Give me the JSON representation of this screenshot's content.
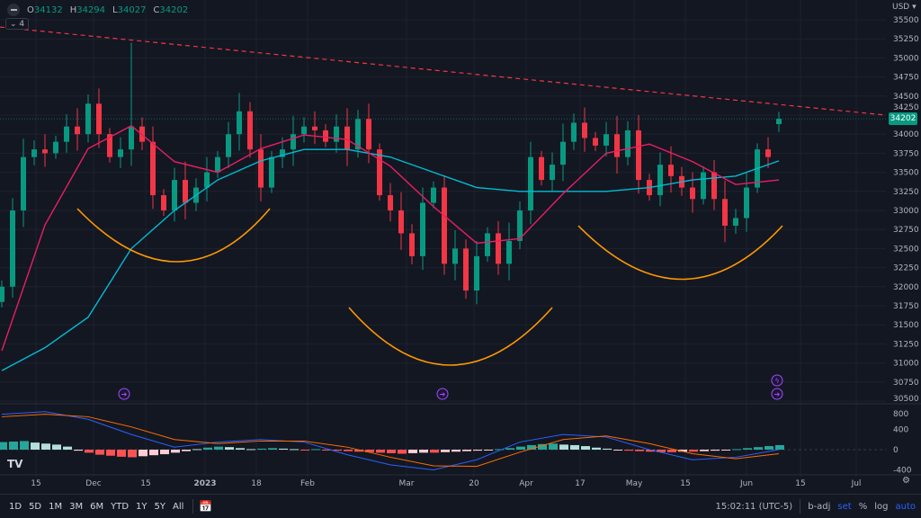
{
  "legend": {
    "o_label": "O",
    "o": "34132",
    "h_label": "H",
    "h": "34294",
    "l_label": "L",
    "l": "34027",
    "c_label": "C",
    "c": "34202",
    "collapse": "4"
  },
  "currency": "USD ▾",
  "last_price": "34202",
  "colors": {
    "up": "#089981",
    "down": "#f23645",
    "ma_fast": "#e91e63",
    "ma_slow": "#00bcd4",
    "trend": "#f23645",
    "arc": "#ff9800",
    "macd": "#2962ff",
    "signal": "#ff6d00",
    "event": "#9c4dff"
  },
  "bottom": {
    "ranges": [
      "1D",
      "5D",
      "1M",
      "3M",
      "6M",
      "YTD",
      "1Y",
      "5Y",
      "All"
    ],
    "time": "15:02:11 (UTC-5)",
    "badj": "b-adj",
    "set": "set",
    "pct": "%",
    "log": "log",
    "auto": "auto"
  },
  "chart_data": {
    "type": "candlestick",
    "price_ticks": [
      35500,
      35250,
      35000,
      34750,
      34500,
      34250,
      34000,
      33750,
      33500,
      33250,
      33000,
      32750,
      32500,
      32250,
      32000,
      31750,
      31500,
      31250,
      31000,
      30750,
      30500
    ],
    "ylim": [
      30500,
      35500
    ],
    "x_ticks": [
      "15",
      "Dec",
      "15",
      "2023",
      "18",
      "Feb",
      "Mar",
      "20",
      "Apr",
      "17",
      "May",
      "15",
      "Jun",
      "15",
      "Jul"
    ],
    "closes": [
      32000,
      33000,
      33700,
      33800,
      33750,
      33900,
      34100,
      34000,
      34400,
      34000,
      33700,
      33800,
      34100,
      33900,
      33200,
      33000,
      33400,
      33100,
      33300,
      33500,
      33700,
      34000,
      34300,
      33800,
      33300,
      33700,
      33800,
      34000,
      34100,
      34050,
      33900,
      34100,
      33800,
      34200,
      33800,
      33200,
      33000,
      32700,
      32400,
      33100,
      33300,
      32300,
      32500,
      31950,
      32400,
      32700,
      32300,
      32600,
      33000,
      33700,
      33400,
      33600,
      33900,
      34150,
      33950,
      33850,
      34000,
      33700,
      34050,
      33400,
      33200,
      33600,
      33450,
      33300,
      33150,
      33500,
      33150,
      32800,
      32900,
      33300,
      33800,
      33700,
      34202
    ],
    "last_candle": {
      "open": 34132,
      "high": 34294,
      "low": 34027,
      "close": 34202
    },
    "ma_slow": [
      30900,
      31200,
      31600,
      32500,
      33000,
      33400,
      33650,
      33800,
      33800,
      33700,
      33500,
      33300,
      33250,
      33250,
      33250,
      33300,
      33400,
      33450,
      33650
    ],
    "ma_fast": [
      31160,
      32810,
      33810,
      34110,
      33640,
      33500,
      33810,
      33990,
      33930,
      33580,
      33050,
      32570,
      32630,
      33220,
      33750,
      33870,
      33640,
      33340,
      33400
    ],
    "trendline": [
      35405,
      34250
    ],
    "macd_ticks": [
      800,
      400,
      0,
      -400
    ],
    "macd": [
      700,
      750,
      600,
      300,
      50,
      150,
      200,
      150,
      -100,
      -300,
      -400,
      -200,
      150,
      300,
      250,
      0,
      -200,
      -150,
      0
    ],
    "signal": [
      650,
      700,
      650,
      450,
      200,
      120,
      170,
      170,
      50,
      -150,
      -320,
      -330,
      -50,
      200,
      270,
      120,
      -80,
      -180,
      -80
    ],
    "histogram": [
      150,
      160,
      170,
      140,
      120,
      100,
      60,
      -20,
      -60,
      -100,
      -120,
      -140,
      -150,
      -130,
      -110,
      -90,
      -60,
      -30,
      10,
      40,
      60,
      50,
      30,
      10,
      20,
      30,
      20,
      10,
      -10,
      10,
      -10,
      -20,
      -30,
      -40,
      -50,
      -60,
      -70,
      -80,
      -70,
      -60,
      -60,
      -50,
      -40,
      -30,
      -20,
      -10,
      10,
      30,
      60,
      90,
      110,
      120,
      100,
      90,
      70,
      40,
      20,
      -10,
      -20,
      -30,
      -40,
      -50,
      -50,
      -40,
      -40,
      -30,
      -20,
      -10,
      10,
      30,
      50,
      70,
      90
    ]
  }
}
